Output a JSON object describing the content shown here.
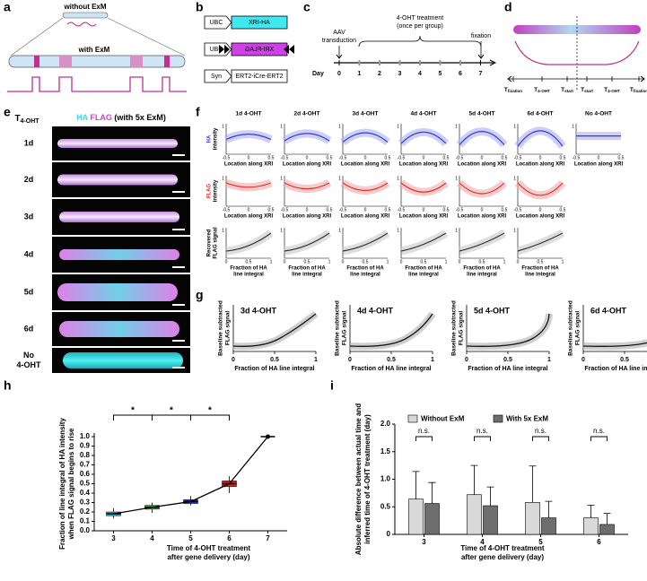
{
  "panels": {
    "a": {
      "label": "a",
      "without": "without ExM",
      "with": "with ExM"
    },
    "b": {
      "label": "b",
      "constructs": [
        {
          "promoter": "UBC",
          "gene": "XRI-HA"
        },
        {
          "promoter": "UBC",
          "gene": "XRI-FLAG"
        },
        {
          "promoter": "Syn",
          "gene": "ERT2-iCre-ERT2"
        }
      ]
    },
    "c": {
      "label": "c",
      "day": "Day",
      "days": [
        "0",
        "1",
        "2",
        "3",
        "4",
        "5",
        "6",
        "7"
      ],
      "transduction": [
        "AAV",
        "transduction"
      ],
      "treatment": [
        "4-OHT treatment",
        "(once per group)"
      ],
      "fixation": "fixation"
    },
    "d": {
      "label": "d",
      "times": [
        {
          "t": "T",
          "sub": "fixation"
        },
        {
          "t": "T",
          "sub": "4-OHT"
        },
        {
          "t": "T",
          "sub": "start"
        },
        {
          "t": "T",
          "sub": "start"
        },
        {
          "t": "T",
          "sub": "4-OHT"
        },
        {
          "t": "T",
          "sub": "fixation"
        }
      ]
    },
    "e": {
      "label": "e",
      "row_header": {
        "t": "T",
        "sub": "4-OHT"
      },
      "title": [
        "HA",
        "FLAG",
        "(with 5x ExM)"
      ],
      "rows": [
        [
          "1d"
        ],
        [
          "2d"
        ],
        [
          "3d"
        ],
        [
          "4d"
        ],
        [
          "5d"
        ],
        [
          "6d"
        ],
        [
          "No",
          "4-OHT"
        ]
      ]
    },
    "f": {
      "label": "f",
      "columns": [
        "1d 4-OHT",
        "2d 4-OHT",
        "3d 4-OHT",
        "4d 4-OHT",
        "5d 4-OHT",
        "6d 4-OHT",
        "No 4-OHT"
      ],
      "row_labels": [
        [
          "HA",
          "intensity"
        ],
        [
          "FLAG",
          "intensity"
        ],
        [
          "Recovered",
          "FLAG signal"
        ]
      ],
      "x_labels": [
        [
          "Location along XRI"
        ],
        [
          "Location along XRI"
        ],
        [
          "Fraction of HA",
          "line integral"
        ]
      ],
      "y_tick": "1",
      "loc_ticks": [
        "-0.5",
        "0",
        "0.5"
      ],
      "frac_ticks": [
        "0",
        "0.5",
        "1"
      ]
    },
    "g": {
      "label": "g",
      "titles": [
        "3d 4-OHT",
        "4d 4-OHT",
        "5d 4-OHT",
        "6d 4-OHT"
      ],
      "y_label": [
        "Baseline subtracted",
        "FLAG signal"
      ],
      "x_label": "Fraction of HA line integral",
      "xticks": [
        "0",
        "0.5",
        "1"
      ]
    }
  },
  "chart_data": [
    {
      "label": "h",
      "type": "box",
      "categories": [
        "3",
        "4",
        "5",
        "6",
        "7"
      ],
      "median": [
        0.18,
        0.25,
        0.31,
        0.5,
        1.0
      ],
      "q1": [
        0.16,
        0.23,
        0.29,
        0.47,
        null
      ],
      "q3": [
        0.2,
        0.27,
        0.33,
        0.53,
        null
      ],
      "whisker_low": [
        0.13,
        0.19,
        0.27,
        0.4,
        null
      ],
      "whisker_high": [
        0.24,
        0.3,
        0.37,
        0.58,
        null
      ],
      "colors": [
        "#3aaeb8",
        "#3f9f3f",
        "#2838b8",
        "#d42020",
        "#000000"
      ],
      "ylim": [
        0,
        1
      ],
      "yticks": [
        {
          "value": 0,
          "label": "0.0"
        },
        0.1,
        0.2,
        0.3,
        0.4,
        0.5,
        0.6,
        0.7,
        0.8,
        0.9,
        {
          "value": 1,
          "label": "1.0"
        }
      ],
      "y_label_lines": [
        "Fraction of line integral of HA intensity",
        "when FLAG signal begins to rise"
      ],
      "x_label_lines": [
        "Time of 4-OHT treatment",
        "after gene delivery (day)"
      ],
      "annotations": [
        "*",
        "*",
        "*"
      ]
    },
    {
      "label": "i",
      "type": "bar",
      "categories": [
        "3",
        "4",
        "5",
        "6"
      ],
      "series": [
        {
          "name": "Without ExM",
          "color": "#d9d9d9",
          "values": [
            0.64,
            0.72,
            0.58,
            0.3
          ],
          "errors": [
            0.5,
            0.53,
            0.66,
            0.23
          ]
        },
        {
          "name": "With 5x ExM",
          "color": "#6e6e6e",
          "values": [
            0.56,
            0.52,
            0.3,
            0.18
          ],
          "errors": [
            0.38,
            0.34,
            0.3,
            0.2
          ]
        }
      ],
      "ylim": [
        0,
        2
      ],
      "yticks": [
        0,
        0.5,
        {
          "value": 1,
          "label": "1.0"
        },
        1.5,
        {
          "value": 2,
          "label": "2.0"
        }
      ],
      "y_label_lines": [
        "Absolute difference between actual time and",
        "inferred time of 4-OHT treatment (day)"
      ],
      "x_label_lines": [
        "Time of 4-OHT treatment",
        "after gene delivery (day)"
      ],
      "annotations": [
        "n.s.",
        "n.s.",
        "n.s.",
        "n.s."
      ],
      "legend": "top"
    }
  ]
}
